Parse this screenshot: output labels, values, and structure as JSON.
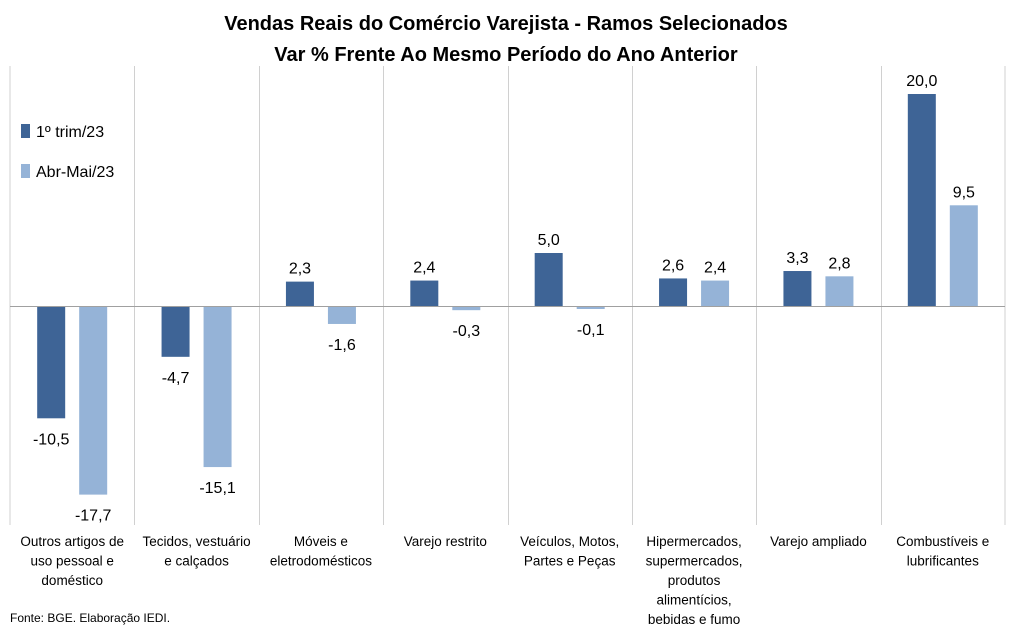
{
  "chart_data": {
    "type": "bar",
    "title": "Vendas Reais do Comércio Varejista - Ramos Selecionados",
    "subtitle": "Var % Frente Ao Mesmo Período do Ano Anterior",
    "categories": [
      [
        "Outros artigos de",
        "uso pessoal e",
        "doméstico"
      ],
      [
        "Tecidos, vestuário",
        "e calçados"
      ],
      [
        "Móveis e",
        "eletrodomésticos"
      ],
      [
        "Varejo restrito"
      ],
      [
        "Veículos, Motos,",
        "Partes e Peças"
      ],
      [
        "Hipermercados,",
        "supermercados,",
        "produtos",
        "alimentícios,",
        "bebidas e fumo"
      ],
      [
        "Varejo ampliado"
      ],
      [
        "Combustíveis e",
        "lubrificantes"
      ]
    ],
    "series": [
      {
        "name": "1º trim/23",
        "color": "#3E6496",
        "values": [
          -10.5,
          -4.7,
          2.3,
          2.4,
          5.0,
          2.6,
          3.3,
          20.0
        ],
        "labels": [
          "-10,5",
          "-4,7",
          "2,3",
          "2,4",
          "5,0",
          "2,6",
          "3,3",
          "20,0"
        ]
      },
      {
        "name": "Abr-Mai/23",
        "color": "#95B3D7",
        "values": [
          -17.7,
          -15.1,
          -1.6,
          -0.3,
          -0.1,
          2.4,
          2.8,
          9.5
        ],
        "labels": [
          "-17,7",
          "-15,1",
          "-1,6",
          "-0,3",
          "-0,1",
          "2,4",
          "2,8",
          "9,5"
        ]
      }
    ],
    "ylim": [
      -20.5,
      22
    ],
    "grid": false,
    "legend_position": "top-left",
    "source": "Fonte: BGE. Elaboração IEDI."
  }
}
